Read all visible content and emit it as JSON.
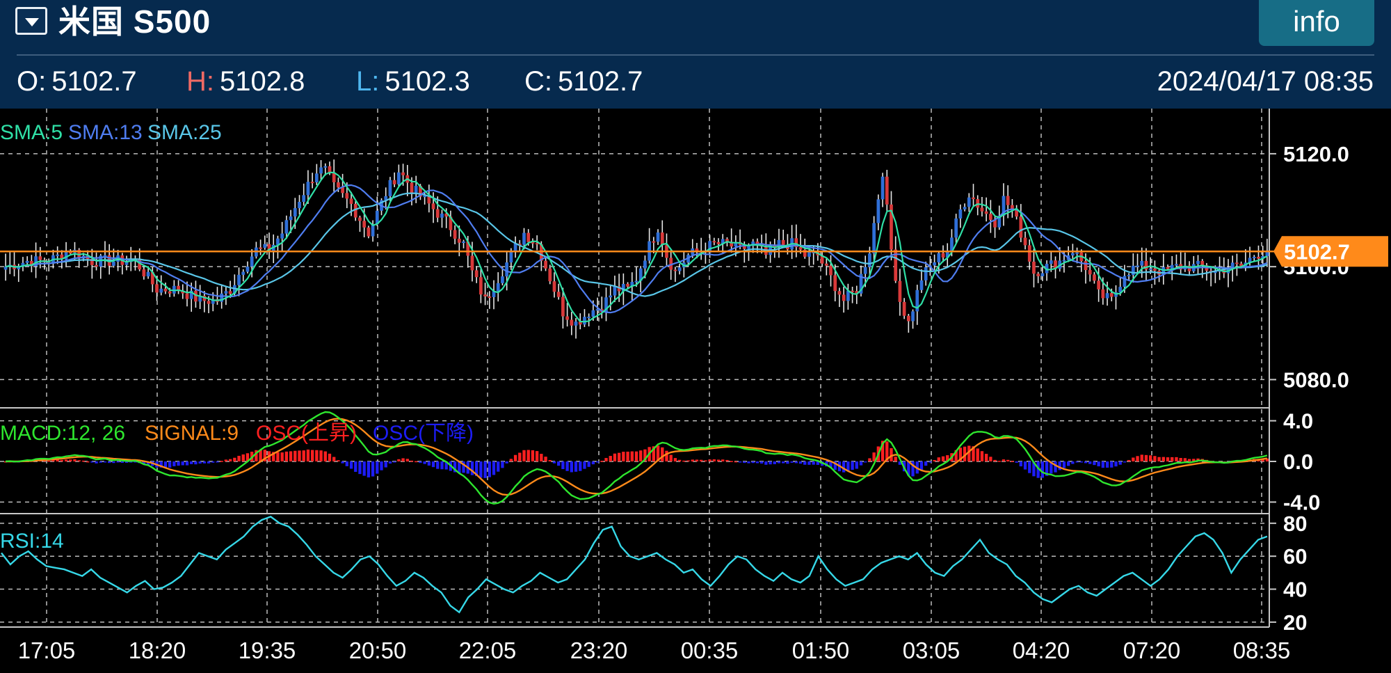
{
  "header": {
    "title": "米国 S500",
    "info_label": "info",
    "open_label": "O:",
    "open_value": "5102.7",
    "high_label": "H:",
    "high_value": "5102.8",
    "low_label": "L:",
    "low_value": "5102.3",
    "close_label": "C:",
    "close_value": "5102.7",
    "timestamp": "2024/04/17 08:35"
  },
  "colors": {
    "header_bg": "#062a4e",
    "bull": "#2f6fd8",
    "bear": "#d9393a",
    "sma5": "#2fe0a6",
    "sma13": "#4f7df0",
    "sma25": "#59c6e8",
    "price_line": "#ff8a1a",
    "macd": "#2ee62e",
    "signal": "#ff8a1a",
    "osc_up": "#ff2020",
    "osc_down": "#1d1df5",
    "rsi": "#36d8e8"
  },
  "chart_data": [
    {
      "type": "candlestick",
      "name": "price",
      "legend": [
        "SMA:5",
        "SMA:13",
        "SMA:25"
      ],
      "y_ticks": [
        "5120.0",
        "5100.0",
        "5080.0"
      ],
      "y_tick_values": [
        5120,
        5100,
        5080
      ],
      "ylim": [
        5075,
        5128
      ],
      "current_price": 5102.7,
      "current_price_label": "5102.7",
      "x_ticks": [
        "17:05",
        "18:20",
        "19:35",
        "20:50",
        "22:05",
        "23:20",
        "00:35",
        "01:50",
        "03:05",
        "04:20",
        "07:20",
        "08:35"
      ],
      "close_keypoints": [
        [
          0,
          5100
        ],
        [
          5,
          5101
        ],
        [
          10,
          5101
        ],
        [
          15,
          5103
        ],
        [
          20,
          5101
        ],
        [
          25,
          5101
        ],
        [
          30,
          5101
        ],
        [
          35,
          5096
        ],
        [
          40,
          5096
        ],
        [
          45,
          5094
        ],
        [
          49,
          5094
        ],
        [
          52,
          5096
        ],
        [
          55,
          5100
        ],
        [
          58,
          5103
        ],
        [
          61,
          5103
        ],
        [
          64,
          5106
        ],
        [
          68,
          5112
        ],
        [
          72,
          5117
        ],
        [
          74,
          5117
        ],
        [
          76,
          5114
        ],
        [
          80,
          5111
        ],
        [
          84,
          5106
        ],
        [
          88,
          5113
        ],
        [
          91,
          5117
        ],
        [
          94,
          5114
        ],
        [
          98,
          5111
        ],
        [
          102,
          5108
        ],
        [
          106,
          5104
        ],
        [
          108,
          5099
        ],
        [
          111,
          5094
        ],
        [
          114,
          5098
        ],
        [
          117,
          5102
        ],
        [
          120,
          5106
        ],
        [
          123,
          5104
        ],
        [
          126,
          5098
        ],
        [
          129,
          5092
        ],
        [
          132,
          5090
        ],
        [
          135,
          5092
        ],
        [
          138,
          5093
        ],
        [
          141,
          5096
        ],
        [
          144,
          5096
        ],
        [
          146,
          5098
        ],
        [
          148,
          5102
        ],
        [
          151,
          5107
        ],
        [
          153,
          5102
        ],
        [
          155,
          5099
        ],
        [
          158,
          5102
        ],
        [
          161,
          5103
        ],
        [
          164,
          5104
        ],
        [
          167,
          5104
        ],
        [
          170,
          5103
        ],
        [
          173,
          5104
        ],
        [
          176,
          5102
        ],
        [
          179,
          5104
        ],
        [
          182,
          5104
        ],
        [
          185,
          5102
        ],
        [
          188,
          5102
        ],
        [
          191,
          5098
        ],
        [
          194,
          5094
        ],
        [
          197,
          5096
        ],
        [
          200,
          5103
        ],
        [
          203,
          5117
        ],
        [
          205,
          5103
        ],
        [
          207,
          5094
        ],
        [
          209,
          5090
        ],
        [
          212,
          5098
        ],
        [
          215,
          5101
        ],
        [
          218,
          5103
        ],
        [
          221,
          5110
        ],
        [
          223,
          5113
        ],
        [
          226,
          5110
        ],
        [
          229,
          5108
        ],
        [
          231,
          5112
        ],
        [
          233,
          5110
        ],
        [
          236,
          5104
        ],
        [
          238,
          5099
        ],
        [
          241,
          5100
        ],
        [
          244,
          5101
        ],
        [
          247,
          5103
        ],
        [
          250,
          5100
        ],
        [
          253,
          5095
        ],
        [
          256,
          5094
        ],
        [
          259,
          5099
        ],
        [
          262,
          5100
        ],
        [
          265,
          5100
        ],
        [
          268,
          5099
        ],
        [
          271,
          5100
        ],
        [
          274,
          5100
        ],
        [
          277,
          5100
        ],
        [
          280,
          5099
        ],
        [
          283,
          5100
        ],
        [
          286,
          5100
        ],
        [
          289,
          5102
        ],
        [
          292,
          5103
        ]
      ]
    },
    {
      "type": "line",
      "name": "macd",
      "legend": [
        "MACD:12, 26",
        "SIGNAL:9",
        "OSC(上昇)",
        "OSC(下降)"
      ],
      "y_ticks": [
        "4.0",
        "0.0",
        "-4.0"
      ],
      "y_tick_values": [
        4,
        0,
        -4
      ],
      "ylim": [
        -5,
        5
      ]
    },
    {
      "type": "line",
      "name": "rsi",
      "legend": [
        "RSI:14"
      ],
      "y_ticks": [
        "80",
        "60",
        "40",
        "20"
      ],
      "y_tick_values": [
        80,
        60,
        40,
        20
      ],
      "ylim": [
        17,
        85
      ],
      "values": [
        62,
        55,
        60,
        63,
        58,
        54,
        53,
        52,
        50,
        48,
        52,
        47,
        44,
        41,
        38,
        42,
        45,
        40,
        41,
        44,
        48,
        55,
        62,
        60,
        58,
        64,
        68,
        72,
        78,
        82,
        84,
        80,
        78,
        73,
        67,
        60,
        55,
        50,
        47,
        52,
        58,
        60,
        55,
        48,
        42,
        45,
        50,
        47,
        42,
        38,
        30,
        26,
        35,
        40,
        46,
        43,
        40,
        38,
        42,
        45,
        50,
        47,
        44,
        46,
        52,
        58,
        68,
        76,
        78,
        66,
        60,
        58,
        60,
        62,
        58,
        55,
        50,
        52,
        46,
        42,
        48,
        55,
        60,
        58,
        52,
        48,
        45,
        50,
        46,
        44,
        48,
        60,
        52,
        46,
        42,
        44,
        46,
        52,
        56,
        58,
        60,
        58,
        62,
        55,
        50,
        48,
        54,
        58,
        64,
        70,
        62,
        58,
        55,
        48,
        44,
        38,
        34,
        32,
        36,
        40,
        42,
        38,
        36,
        40,
        44,
        48,
        50,
        46,
        42,
        46,
        52,
        60,
        66,
        72,
        74,
        70,
        62,
        50,
        58,
        64,
        70,
        72
      ]
    }
  ]
}
